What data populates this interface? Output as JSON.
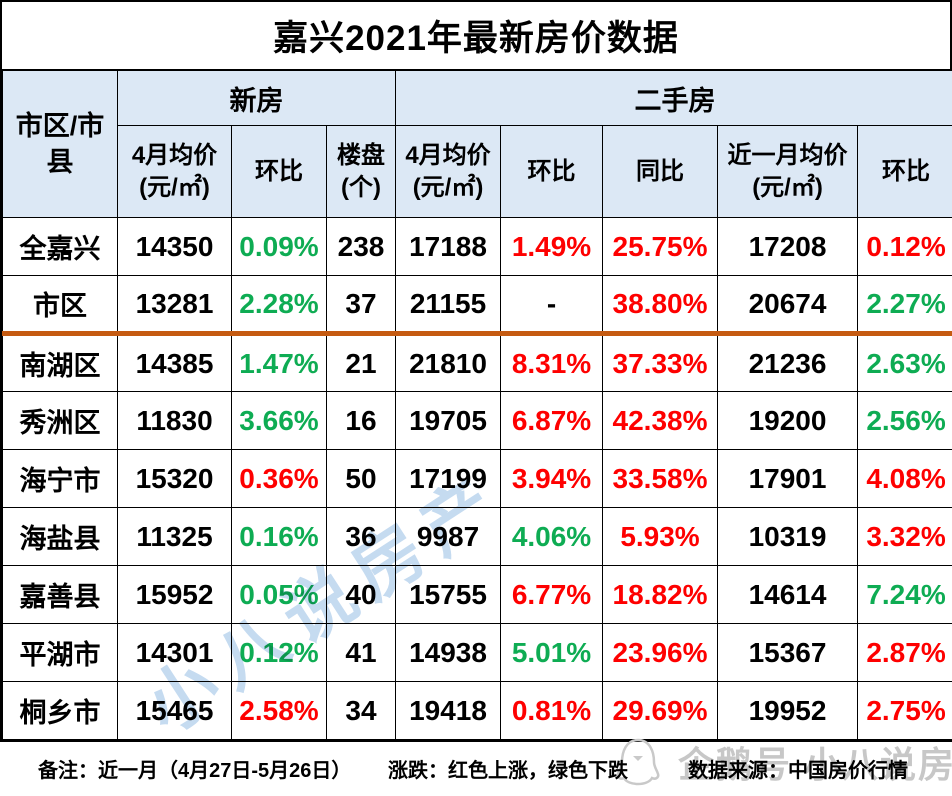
{
  "title": "嘉兴2021年最新房价数据",
  "table": {
    "corner_header": "市区/市县",
    "groups": [
      {
        "label": "新房",
        "span": 3
      },
      {
        "label": "二手房",
        "span": 5
      }
    ],
    "sub_headers": [
      "4月均价 (元/㎡)",
      "环比",
      "楼盘 (个)",
      "4月均价 (元/㎡)",
      "环比",
      "同比",
      "近一月均价(元/㎡)",
      "环比"
    ],
    "rows": [
      {
        "name": "全嘉兴",
        "divider": false,
        "cells": [
          {
            "v": "14350",
            "c": "k"
          },
          {
            "v": "0.09%",
            "c": "g"
          },
          {
            "v": "238",
            "c": "k"
          },
          {
            "v": "17188",
            "c": "k"
          },
          {
            "v": "1.49%",
            "c": "r"
          },
          {
            "v": "25.75%",
            "c": "r"
          },
          {
            "v": "17208",
            "c": "k"
          },
          {
            "v": "0.12%",
            "c": "r"
          }
        ]
      },
      {
        "name": "市区",
        "divider": true,
        "cells": [
          {
            "v": "13281",
            "c": "k"
          },
          {
            "v": "2.28%",
            "c": "g"
          },
          {
            "v": "37",
            "c": "k"
          },
          {
            "v": "21155",
            "c": "k"
          },
          {
            "v": "-",
            "c": "k"
          },
          {
            "v": "38.80%",
            "c": "r"
          },
          {
            "v": "20674",
            "c": "k"
          },
          {
            "v": "2.27%",
            "c": "g"
          }
        ]
      },
      {
        "name": "南湖区",
        "divider": false,
        "cells": [
          {
            "v": "14385",
            "c": "k"
          },
          {
            "v": "1.47%",
            "c": "g"
          },
          {
            "v": "21",
            "c": "k"
          },
          {
            "v": "21810",
            "c": "k"
          },
          {
            "v": "8.31%",
            "c": "r"
          },
          {
            "v": "37.33%",
            "c": "r"
          },
          {
            "v": "21236",
            "c": "k"
          },
          {
            "v": "2.63%",
            "c": "g"
          }
        ]
      },
      {
        "name": "秀洲区",
        "divider": false,
        "cells": [
          {
            "v": "11830",
            "c": "k"
          },
          {
            "v": "3.66%",
            "c": "g"
          },
          {
            "v": "16",
            "c": "k"
          },
          {
            "v": "19705",
            "c": "k"
          },
          {
            "v": "6.87%",
            "c": "r"
          },
          {
            "v": "42.38%",
            "c": "r"
          },
          {
            "v": "19200",
            "c": "k"
          },
          {
            "v": "2.56%",
            "c": "g"
          }
        ]
      },
      {
        "name": "海宁市",
        "divider": false,
        "cells": [
          {
            "v": "15320",
            "c": "k"
          },
          {
            "v": "0.36%",
            "c": "r"
          },
          {
            "v": "50",
            "c": "k"
          },
          {
            "v": "17199",
            "c": "k"
          },
          {
            "v": "3.94%",
            "c": "r"
          },
          {
            "v": "33.58%",
            "c": "r"
          },
          {
            "v": "17901",
            "c": "k"
          },
          {
            "v": "4.08%",
            "c": "r"
          }
        ]
      },
      {
        "name": "海盐县",
        "divider": false,
        "cells": [
          {
            "v": "11325",
            "c": "k"
          },
          {
            "v": "0.16%",
            "c": "g"
          },
          {
            "v": "36",
            "c": "k"
          },
          {
            "v": "9987",
            "c": "k"
          },
          {
            "v": "4.06%",
            "c": "g"
          },
          {
            "v": "5.93%",
            "c": "r"
          },
          {
            "v": "10319",
            "c": "k"
          },
          {
            "v": "3.32%",
            "c": "r"
          }
        ]
      },
      {
        "name": "嘉善县",
        "divider": false,
        "cells": [
          {
            "v": "15952",
            "c": "k"
          },
          {
            "v": "0.05%",
            "c": "g"
          },
          {
            "v": "40",
            "c": "k"
          },
          {
            "v": "15755",
            "c": "k"
          },
          {
            "v": "6.77%",
            "c": "r"
          },
          {
            "v": "18.82%",
            "c": "r"
          },
          {
            "v": "14614",
            "c": "k"
          },
          {
            "v": "7.24%",
            "c": "g"
          }
        ]
      },
      {
        "name": "平湖市",
        "divider": false,
        "cells": [
          {
            "v": "14301",
            "c": "k"
          },
          {
            "v": "0.12%",
            "c": "g"
          },
          {
            "v": "41",
            "c": "k"
          },
          {
            "v": "14938",
            "c": "k"
          },
          {
            "v": "5.01%",
            "c": "g"
          },
          {
            "v": "23.96%",
            "c": "r"
          },
          {
            "v": "15367",
            "c": "k"
          },
          {
            "v": "2.87%",
            "c": "r"
          }
        ]
      },
      {
        "name": "桐乡市",
        "divider": false,
        "cells": [
          {
            "v": "15465",
            "c": "k"
          },
          {
            "v": "2.58%",
            "c": "r"
          },
          {
            "v": "34",
            "c": "k"
          },
          {
            "v": "19418",
            "c": "k"
          },
          {
            "v": "0.81%",
            "c": "r"
          },
          {
            "v": "29.69%",
            "c": "r"
          },
          {
            "v": "19952",
            "c": "k"
          },
          {
            "v": "2.75%",
            "c": "r"
          }
        ]
      }
    ]
  },
  "footer": {
    "note": "备注：近一月（4月27日-5月26日）",
    "legend": "涨跌：红色上涨，绿色下跌",
    "source": "数据来源：中国房价行情"
  },
  "watermarks": {
    "diagonal": "小八说房产",
    "account": "企鹅号 小八说房产",
    "penguin_icon": "penguin-icon"
  },
  "colors": {
    "up_red": "#FE0000",
    "down_green": "#0EAC53",
    "header_bg": "#DCE8F5",
    "divider_orange": "#C55A11",
    "watermark_blue": "#BFD7EF",
    "watermark_gray": "#C7C7C7"
  }
}
